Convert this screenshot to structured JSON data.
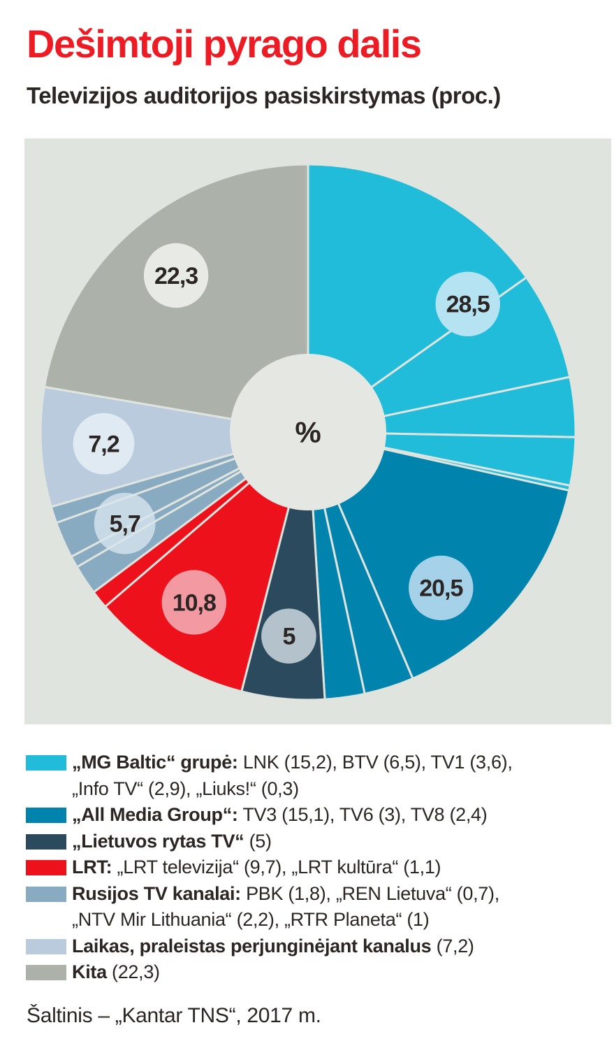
{
  "page": {
    "title": "Dešimtoji pyrago dalis",
    "subtitle": "Televizijos auditorijos pasiskirstymas (proc.)",
    "source": "Šaltinis – „Kantar TNS“, 2017 m."
  },
  "colors": {
    "page_bg": "#ffffff",
    "panel_bg": "#e0e4df",
    "center_circle": "#e4e7e2",
    "title_red": "#ed1c24",
    "text_dark": "#2b2523",
    "bubble_text": "#2b2523"
  },
  "chart_data": {
    "type": "pie",
    "donut": true,
    "title": "Dešimtoji pyrago dalis",
    "subtitle": "Televizijos auditorijos pasiskirstymas (proc.)",
    "units": "proc.",
    "center_label": "%",
    "start_angle_deg_from_top": 0,
    "direction": "clockwise",
    "total": 100,
    "groups": [
      {
        "name": "„MG Baltic“ grupė",
        "total": 28.5,
        "bubble_label": "28,5",
        "bubble_opacity": 1,
        "color": "#21bcd9",
        "bubble_color": "#b5e3f2",
        "segments": [
          {
            "name": "LNK",
            "value": 15.2
          },
          {
            "name": "BTV",
            "value": 6.5
          },
          {
            "name": "TV1",
            "value": 3.6
          },
          {
            "name": "„Info TV“",
            "value": 2.9
          },
          {
            "name": "„Liuks!“",
            "value": 0.3
          }
        ]
      },
      {
        "name": "„All Media Group“",
        "total": 20.5,
        "bubble_label": "20,5",
        "bubble_opacity": 1,
        "color": "#0084ad",
        "bubble_color": "#a5d2e8",
        "segments": [
          {
            "name": "TV3",
            "value": 15.1
          },
          {
            "name": "TV6",
            "value": 3
          },
          {
            "name": "TV8",
            "value": 2.4
          }
        ]
      },
      {
        "name": "„Lietuvos rytas TV“",
        "total": 5,
        "bubble_label": "5",
        "bubble_opacity": 1,
        "color": "#2c4a5e",
        "bubble_color": "#b3c2cb",
        "segments": [
          {
            "name": "„Lietuvos rytas TV“",
            "value": 5
          }
        ]
      },
      {
        "name": "LRT",
        "total": 10.8,
        "bubble_label": "10,8",
        "bubble_opacity": 1,
        "color": "#ed111c",
        "bubble_color": "#f399a1",
        "segments": [
          {
            "name": "„LRT televizija“",
            "value": 9.7
          },
          {
            "name": "„LRT kultūra“",
            "value": 1.1
          }
        ]
      },
      {
        "name": "Rusijos TV kanalai",
        "total": 5.7,
        "bubble_label": "5,7",
        "bubble_opacity": 0.78,
        "color": "#89abc1",
        "bubble_color": "#d8e5ee",
        "segments": [
          {
            "name": "PBK",
            "value": 1.8
          },
          {
            "name": "„REN Lietuva“",
            "value": 0.7
          },
          {
            "name": "„NTV Mir Lithuania“",
            "value": 2.2
          },
          {
            "name": "„RTR Planeta“",
            "value": 1
          }
        ]
      },
      {
        "name": "Laikas, praleistas perjunginėjant kanalus",
        "total": 7.2,
        "bubble_label": "7,2",
        "bubble_opacity": 1,
        "color": "#b9cbdd",
        "bubble_color": "#dfeaf2",
        "segments": [
          {
            "name": "Laikas, praleistas perjunginėjant kanalus",
            "value": 7.2
          }
        ]
      },
      {
        "name": "Kita",
        "total": 22.3,
        "bubble_label": "22,3",
        "bubble_opacity": 1,
        "color": "#acb2aa",
        "bubble_color": "#e8eae5",
        "segments": [
          {
            "name": "Kita",
            "value": 22.3
          }
        ]
      }
    ]
  },
  "legend": {
    "rows": [
      {
        "group_index": 0,
        "bold": "„MG Baltic“ grupė:",
        "rest": " LNK (15,2), BTV (6,5), TV1 (3,6),"
      },
      {
        "group_index": null,
        "bold": null,
        "rest": "„Info TV“ (2,9), „Liuks!“ (0,3)"
      },
      {
        "group_index": 1,
        "bold": "„All Media Group“:",
        "rest": " TV3 (15,1), TV6 (3), TV8 (2,4)"
      },
      {
        "group_index": 2,
        "bold": "„Lietuvos rytas TV“",
        "rest": " (5)"
      },
      {
        "group_index": 3,
        "bold": "LRT:",
        "rest": " „LRT televizija“ (9,7), „LRT kultūra“ (1,1)"
      },
      {
        "group_index": 4,
        "bold": "Rusijos TV kanalai:",
        "rest": " PBK (1,8), „REN Lietuva“ (0,7),"
      },
      {
        "group_index": null,
        "bold": null,
        "rest": "„NTV Mir Lithuania“ (2,2), „RTR Planeta“ (1)"
      },
      {
        "group_index": 5,
        "bold": "Laikas, praleistas perjunginėjant kanalus",
        "rest": " (7,2)"
      },
      {
        "group_index": 6,
        "bold": "Kita",
        "rest": " (22,3)"
      }
    ]
  }
}
